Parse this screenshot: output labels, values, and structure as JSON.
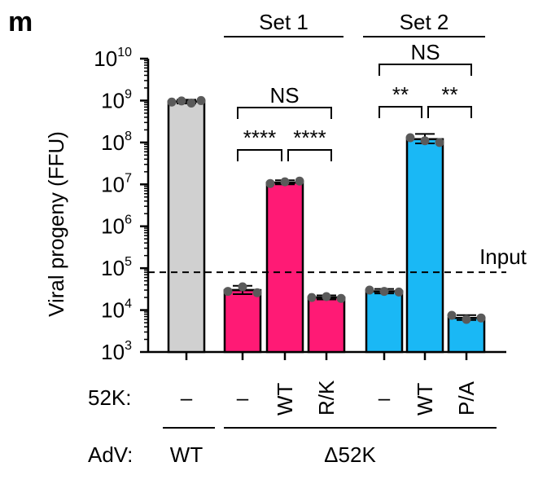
{
  "panel_label": "m",
  "chart_data": {
    "type": "bar",
    "ylabel": "Viral progeny (FFU)",
    "yscale": "log",
    "ylim": [
      1000,
      10000000000
    ],
    "ytick_mantissa": "10",
    "ytick_exponents": [
      "3",
      "4",
      "5",
      "6",
      "7",
      "8",
      "9",
      "10"
    ],
    "bars": [
      {
        "adv": "WT",
        "k52": "–",
        "set": "",
        "value": 950000000,
        "color": "#d0d0d0",
        "points": [
          920000000,
          980000000,
          870000000,
          1000000000
        ],
        "err_low": 850000000,
        "err_high": 1050000000
      },
      {
        "adv": "Δ52K",
        "k52": "–",
        "set": "Set 1",
        "value": 30000,
        "color": "#ff1a75",
        "points": [
          28000,
          36000,
          26000
        ],
        "err_low": 24000,
        "err_high": 38000
      },
      {
        "adv": "Δ52K",
        "k52": "WT",
        "set": "Set 1",
        "value": 11000000,
        "color": "#ff1a75",
        "points": [
          10500000,
          11500000,
          12000000
        ],
        "err_low": 10000000,
        "err_high": 12500000
      },
      {
        "adv": "Δ52K",
        "k52": "R/K",
        "set": "Set 1",
        "value": 20000,
        "color": "#ff1a75",
        "points": [
          20000,
          21000,
          19000
        ],
        "err_low": 18000,
        "err_high": 22500
      },
      {
        "adv": "Δ52K",
        "k52": "–",
        "set": "Set 2",
        "value": 28000,
        "color": "#1ab8f5",
        "points": [
          30000,
          28000,
          27000
        ],
        "err_low": 25000,
        "err_high": 32000
      },
      {
        "adv": "Δ52K",
        "k52": "WT",
        "set": "Set 2",
        "value": 120000000,
        "color": "#1ab8f5",
        "points": [
          130000000,
          110000000,
          100000000
        ],
        "err_low": 95000000,
        "err_high": 160000000
      },
      {
        "adv": "Δ52K",
        "k52": "P/A",
        "set": "Set 2",
        "value": 6500,
        "color": "#1ab8f5",
        "points": [
          7500,
          6000,
          6500
        ],
        "err_low": 5800,
        "err_high": 7600
      }
    ],
    "input_line": {
      "value": 80000,
      "label": "Input"
    },
    "sets": [
      "Set 1",
      "Set 2"
    ],
    "significance": [
      {
        "from": 1,
        "to": 2,
        "label": "****",
        "level": 0
      },
      {
        "from": 2,
        "to": 3,
        "label": "****",
        "level": 0
      },
      {
        "from": 1,
        "to": 3,
        "label": "NS",
        "level": 1
      },
      {
        "from": 4,
        "to": 5,
        "label": "**",
        "level": 0
      },
      {
        "from": 5,
        "to": 6,
        "label": "**",
        "level": 0
      },
      {
        "from": 4,
        "to": 6,
        "label": "NS",
        "level": 1
      }
    ],
    "row_labels": {
      "k52": "52K:",
      "adv": "AdV:"
    },
    "adv_groups": [
      "WT",
      "Δ52K"
    ]
  }
}
